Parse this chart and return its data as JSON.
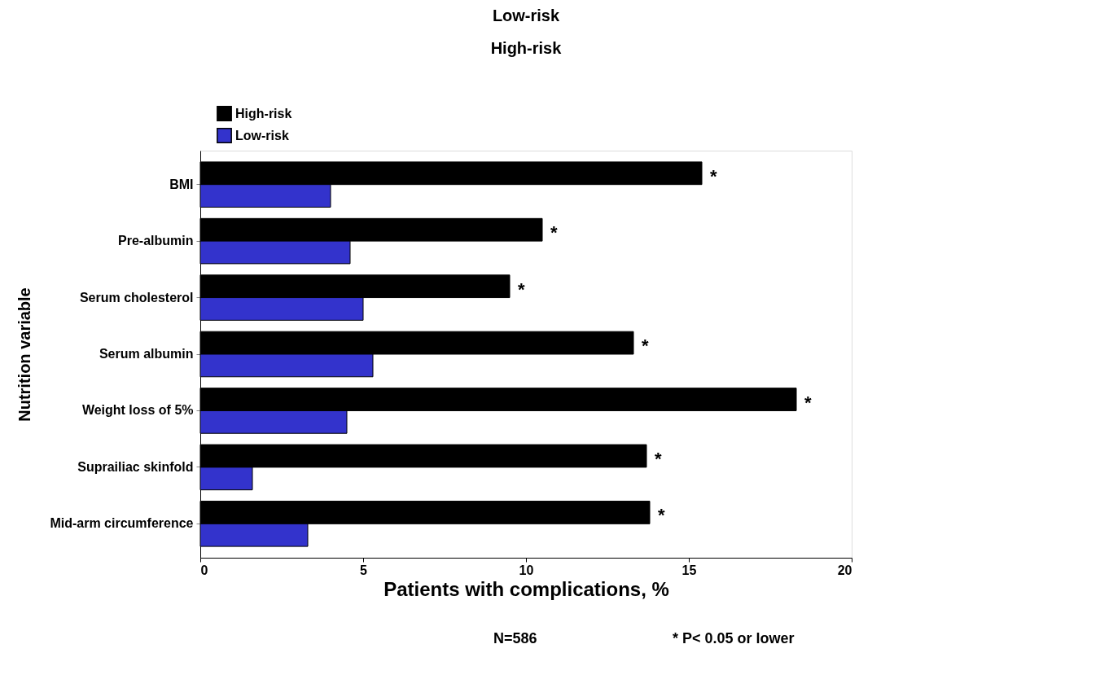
{
  "chart_data": {
    "type": "bar",
    "orientation": "horizontal",
    "xlabel": "Patients with complications, %",
    "ylabel": "Nutrition variable",
    "categories": [
      "BMI",
      "Pre-albumin",
      "Serum cholesterol",
      "Serum albumin",
      "Weight loss of 5%",
      "Suprailiac skinfold",
      "Mid-arm circumference"
    ],
    "series": [
      {
        "name": "High-risk",
        "color": "#000000",
        "values": [
          15.4,
          10.5,
          9.5,
          13.3,
          18.3,
          13.7,
          13.8
        ],
        "value_labels": [
          "*",
          "*",
          "*",
          "*",
          "*",
          "*",
          "*"
        ]
      },
      {
        "name": "Low-risk",
        "color": "#3333cc",
        "values": [
          4.0,
          4.6,
          5.0,
          5.3,
          4.5,
          1.6,
          3.3
        ]
      }
    ],
    "xlim": [
      0,
      20
    ],
    "xticks": [
      0,
      5,
      10,
      15,
      20
    ],
    "grid": false,
    "legend": "top left",
    "annotations": [
      "Low-risk",
      "High-risk",
      "N=586",
      "* P< 0.05 or lower"
    ]
  }
}
